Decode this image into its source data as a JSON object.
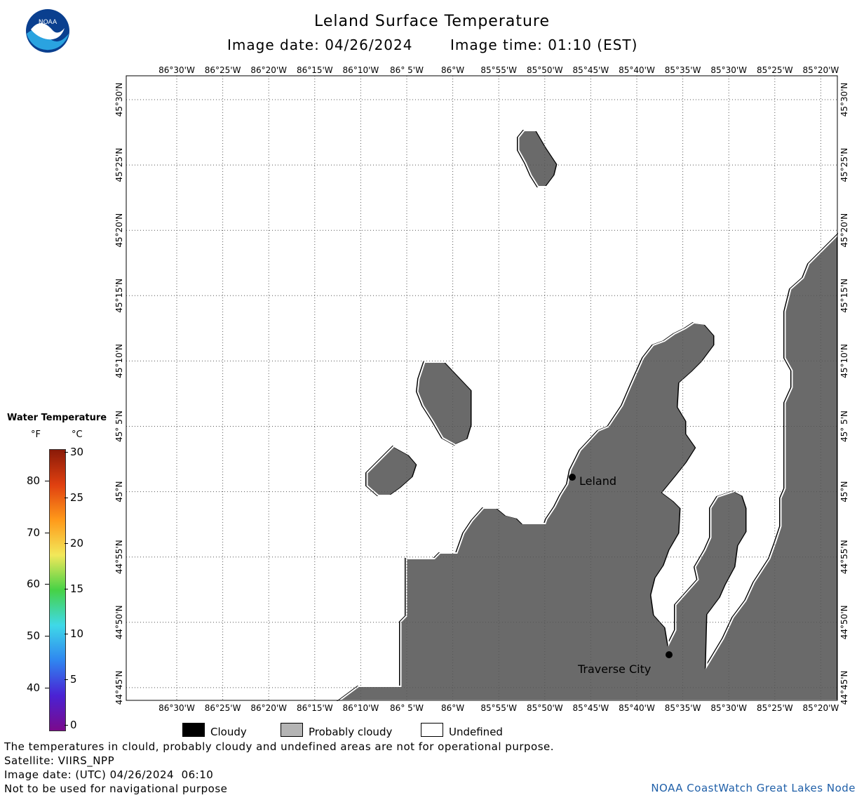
{
  "header": {
    "title": "Leland Surface Temperature",
    "image_date_label": "Image date: 04/26/2024",
    "image_time_label": "Image time: 01:10 (EST)"
  },
  "logo": {
    "text": "NOAA",
    "icon": "noaa-logo-icon"
  },
  "map": {
    "lon_ticks": [
      "86°30'W",
      "86°25'W",
      "86°20'W",
      "86°15'W",
      "86°10'W",
      "86° 5'W",
      "86°W",
      "85°55'W",
      "85°50'W",
      "85°45'W",
      "85°40'W",
      "85°35'W",
      "85°30'W",
      "85°25'W",
      "85°20'W"
    ],
    "lat_ticks": [
      "45°30'N",
      "45°25'N",
      "45°20'N",
      "45°15'N",
      "45°10'N",
      "45° 5'N",
      "45°N",
      "44°55'N",
      "44°50'N",
      "44°45'N"
    ],
    "land_color": "#6a6a6a",
    "water_color": "#ffffff",
    "places": [
      {
        "name": "Leland"
      },
      {
        "name": "Traverse City"
      }
    ]
  },
  "colorbar": {
    "title": "Water Temperature",
    "unit_f": "°F",
    "unit_c": "°C",
    "f_ticks": [
      "80",
      "70",
      "60",
      "50",
      "40"
    ],
    "c_ticks": [
      "30",
      "25",
      "20",
      "15",
      "10",
      "5",
      "0"
    ],
    "gradient_colors": [
      "#7a0a8c",
      "#4a22d4",
      "#2f86f0",
      "#3fd9e8",
      "#46d246",
      "#f2e85a",
      "#ff9a1a",
      "#e04010",
      "#8a1a08"
    ]
  },
  "legend": {
    "cloudy": {
      "label": "Cloudy",
      "color": "#000000"
    },
    "probably_cloudy": {
      "label": "Probably cloudy",
      "color": "#b4b4b4"
    },
    "undefined": {
      "label": "Undefined",
      "color": "#ffffff"
    }
  },
  "footer": {
    "line1": "The temperatures in clould, probably cloudy and undefined areas are not for operational purpose.",
    "line2": "Satellite: VIIRS_NPP",
    "line3": "Image date: (UTC) 04/26/2024  06:10",
    "line4": "Not to be used for navigational purpose",
    "credit": "NOAA CoastWatch Great Lakes Node"
  }
}
